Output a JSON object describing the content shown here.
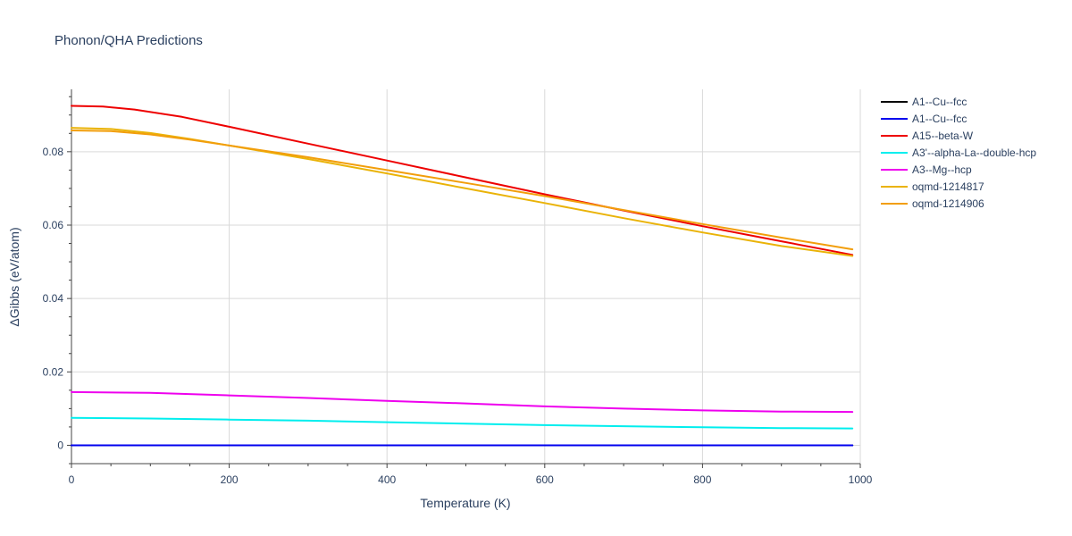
{
  "chart_data": {
    "type": "line",
    "title": "Phonon/QHA Predictions",
    "xlabel": "Temperature (K)",
    "ylabel": "ΔGibbs (eV/atom)",
    "xlim": [
      0,
      1000
    ],
    "ylim": [
      -0.005,
      0.097
    ],
    "x_ticks": [
      0,
      200,
      400,
      600,
      800,
      1000
    ],
    "x_tick_labels": [
      "0",
      "200",
      "400",
      "600",
      "800",
      "1000"
    ],
    "y_ticks": [
      0,
      0.02,
      0.04,
      0.06,
      0.08
    ],
    "y_tick_labels": [
      "0",
      "0.02",
      "0.04",
      "0.06",
      "0.08"
    ],
    "grid": true,
    "legend_position": "right",
    "series": [
      {
        "name": "A1--Cu--fcc",
        "color": "#000000",
        "x": [
          0,
          990
        ],
        "y": [
          0,
          0
        ]
      },
      {
        "name": "A1--Cu--fcc",
        "color": "#0000ee",
        "x": [
          0,
          990
        ],
        "y": [
          0,
          0
        ]
      },
      {
        "name": "A15--beta-W",
        "color": "#ee0000",
        "x": [
          0,
          40,
          80,
          140,
          200,
          300,
          400,
          500,
          600,
          700,
          800,
          900,
          990
        ],
        "y": [
          0.0925,
          0.0923,
          0.0915,
          0.0895,
          0.0868,
          0.0822,
          0.0776,
          0.073,
          0.0684,
          0.064,
          0.0597,
          0.0556,
          0.0519
        ]
      },
      {
        "name": "A3'--alpha-La--double-hcp",
        "color": "#00eeee",
        "x": [
          0,
          100,
          200,
          300,
          400,
          500,
          600,
          700,
          800,
          900,
          990
        ],
        "y": [
          0.0075,
          0.0073,
          0.007,
          0.0067,
          0.0063,
          0.0059,
          0.0055,
          0.0052,
          0.0049,
          0.0047,
          0.0046
        ]
      },
      {
        "name": "A3--Mg--hcp",
        "color": "#ee00ee",
        "x": [
          0,
          100,
          200,
          300,
          400,
          500,
          600,
          700,
          800,
          900,
          990
        ],
        "y": [
          0.0145,
          0.0143,
          0.0136,
          0.0129,
          0.0121,
          0.0114,
          0.0106,
          0.01,
          0.0095,
          0.0092,
          0.0091
        ]
      },
      {
        "name": "oqmd-1214817",
        "color": "#eab308",
        "x": [
          0,
          50,
          100,
          150,
          200,
          300,
          400,
          500,
          600,
          700,
          800,
          900,
          990
        ],
        "y": [
          0.0865,
          0.0862,
          0.0851,
          0.0835,
          0.0817,
          0.078,
          0.0741,
          0.07,
          0.066,
          0.0619,
          0.058,
          0.0543,
          0.0516
        ]
      },
      {
        "name": "oqmd-1214906",
        "color": "#f29e0b",
        "x": [
          0,
          50,
          100,
          150,
          200,
          300,
          400,
          500,
          600,
          700,
          800,
          900,
          990
        ],
        "y": [
          0.0858,
          0.0856,
          0.0847,
          0.0833,
          0.0817,
          0.0785,
          0.075,
          0.0715,
          0.0679,
          0.0641,
          0.0603,
          0.0566,
          0.0534
        ]
      }
    ]
  }
}
